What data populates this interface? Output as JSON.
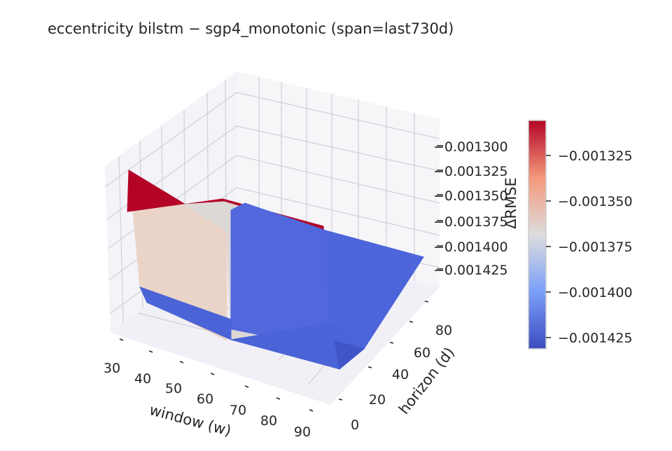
{
  "chart_data": {
    "type": "surface3d",
    "title": "eccentricity  bilstm − sgp4_monotonic  (span=last730d)",
    "xlabel": "window (w)",
    "ylabel": "horizon (d)",
    "zlabel": "ΔRMSE",
    "x_ticks": [
      "30",
      "40",
      "50",
      "60",
      "70",
      "80",
      "90"
    ],
    "y_ticks": [
      "0",
      "20",
      "40",
      "60",
      "80"
    ],
    "z_ticks": [
      "−0.001300",
      "−0.001325",
      "−0.001350",
      "−0.001375",
      "−0.001400",
      "−0.001425"
    ],
    "colorbar_ticks": [
      "−0.001325",
      "−0.001350",
      "−0.001375",
      "−0.001400",
      "−0.001425"
    ],
    "colormap": "coolwarm",
    "colors": {
      "low": "#3b4cc0",
      "mid": "#dddddd",
      "high": "#b40426"
    },
    "surface_faces": [
      {
        "name": "red-top-left",
        "value": -0.001313,
        "color": "#b40426"
      },
      {
        "name": "red-top-right",
        "value": -0.001313,
        "color": "#b40426"
      },
      {
        "name": "peach-left",
        "value": -0.001368,
        "color": "#ead4c8"
      },
      {
        "name": "light-grey-center",
        "value": -0.001376,
        "color": "#dcd8d6"
      },
      {
        "name": "blue-back",
        "value": -0.001425,
        "color": "#5068dc"
      },
      {
        "name": "blue-right",
        "value": -0.001425,
        "color": "#4d65da"
      },
      {
        "name": "blue-front",
        "value": -0.001427,
        "color": "#4a63d6"
      },
      {
        "name": "blue-corner",
        "value": -0.001432,
        "color": "#3f55c8"
      }
    ]
  }
}
